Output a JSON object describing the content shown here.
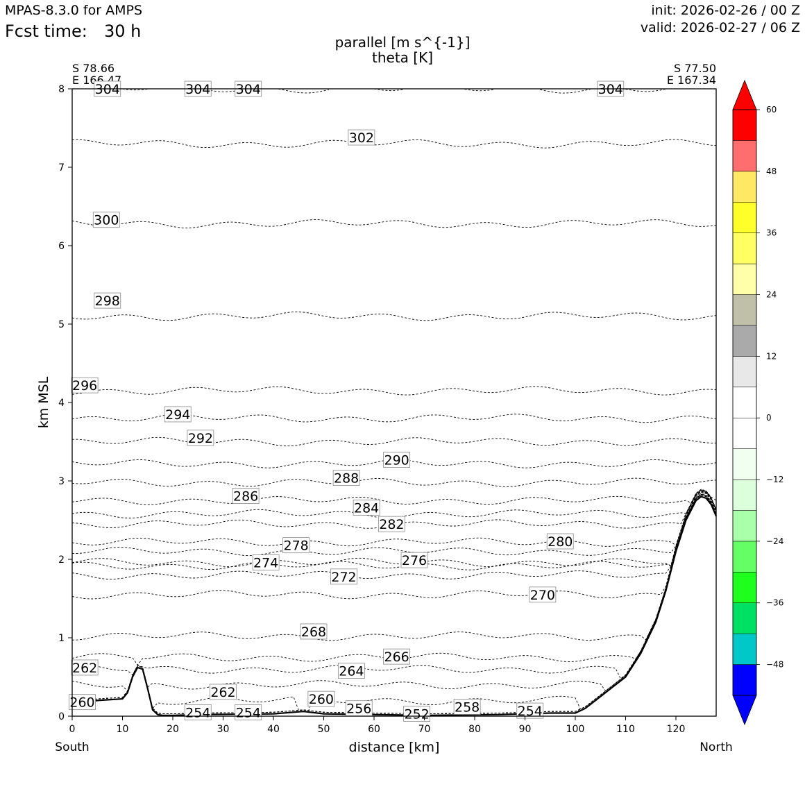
{
  "header": {
    "model": "MPAS-8.3.0 for AMPS",
    "fcst_label": "Fcst time:",
    "fcst_value": "30 h",
    "init": "init: 2026-02-26 / 00 Z",
    "valid": "valid: 2026-02-27 / 06 Z"
  },
  "title": {
    "line1": "parallel [m s^{-1}]",
    "line2": "theta [K]"
  },
  "endpoints": {
    "left_lat": "S 78.66",
    "left_lon": "E 166.47",
    "right_lat": "S 77.50",
    "right_lon": "E 167.34",
    "left_dir": "South",
    "right_dir": "North"
  },
  "chart_data": {
    "type": "contour-cross-section",
    "xlabel": "distance [km]",
    "ylabel": "km MSL",
    "xlim": [
      0,
      128
    ],
    "ylim": [
      0,
      8
    ],
    "xticks": [
      0,
      10,
      20,
      30,
      40,
      50,
      60,
      70,
      80,
      90,
      100,
      110,
      120
    ],
    "yticks": [
      0,
      1,
      2,
      3,
      4,
      5,
      6,
      7,
      8
    ],
    "terrain": {
      "x": [
        0,
        5,
        10,
        11,
        12,
        13,
        14,
        15,
        16,
        17,
        18,
        20,
        25,
        40,
        46,
        50,
        70,
        85,
        95,
        100,
        102,
        105,
        108,
        110,
        113,
        116,
        118,
        120,
        122,
        124,
        125,
        126,
        127,
        128
      ],
      "z": [
        0.15,
        0.2,
        0.22,
        0.3,
        0.5,
        0.62,
        0.6,
        0.35,
        0.08,
        0.02,
        0.01,
        0.01,
        0.02,
        0.03,
        0.06,
        0.03,
        0.01,
        0.02,
        0.04,
        0.04,
        0.1,
        0.25,
        0.4,
        0.5,
        0.8,
        1.2,
        1.6,
        2.1,
        2.5,
        2.75,
        2.8,
        2.78,
        2.7,
        2.55
      ]
    },
    "theta_contours": [
      {
        "label": "304",
        "z": 8.0
      },
      {
        "label": "302",
        "z": 7.3
      },
      {
        "label": "300",
        "z": 6.28
      },
      {
        "label": "298",
        "z": 5.1
      },
      {
        "label": "296",
        "z": 4.15
      },
      {
        "label": "294",
        "z": 3.8
      },
      {
        "label": "292",
        "z": 3.5
      },
      {
        "label": "290",
        "z": 3.22
      },
      {
        "label": "288",
        "z": 2.98
      },
      {
        "label": "286",
        "z": 2.75
      },
      {
        "label": "284",
        "z": 2.58
      },
      {
        "label": "282",
        "z": 2.45
      },
      {
        "label": "280",
        "z": 2.22
      },
      {
        "label": "278",
        "z": 2.1
      },
      {
        "label": "276",
        "z": 1.96
      },
      {
        "label": "274",
        "z": 1.92
      },
      {
        "label": "272",
        "z": 1.8
      },
      {
        "label": "270",
        "z": 1.55
      },
      {
        "label": "268",
        "z": 1.02
      },
      {
        "label": "266",
        "z": 0.75
      },
      {
        "label": "264",
        "z": 0.6
      },
      {
        "label": "262",
        "z": 0.4
      },
      {
        "label": "260",
        "z": 0.2
      },
      {
        "label": "258",
        "z": 0.12
      },
      {
        "label": "256",
        "z": 0.08
      },
      {
        "label": "254",
        "z": 0.05
      },
      {
        "label": "252",
        "z": 0.03
      }
    ],
    "contour_labels": [
      {
        "text": "304",
        "x": 7,
        "z": 8.0
      },
      {
        "text": "304",
        "x": 25,
        "z": 8.0
      },
      {
        "text": "304",
        "x": 35,
        "z": 8.0
      },
      {
        "text": "304",
        "x": 107,
        "z": 8.0
      },
      {
        "text": "302",
        "x": 57.5,
        "z": 7.38
      },
      {
        "text": "300",
        "x": 6.8,
        "z": 6.33
      },
      {
        "text": "298",
        "x": 7,
        "z": 5.3
      },
      {
        "text": "296",
        "x": 2.5,
        "z": 4.22
      },
      {
        "text": "294",
        "x": 21,
        "z": 3.85
      },
      {
        "text": "292",
        "x": 25.5,
        "z": 3.55
      },
      {
        "text": "290",
        "x": 64.5,
        "z": 3.27
      },
      {
        "text": "288",
        "x": 54.5,
        "z": 3.04
      },
      {
        "text": "286",
        "x": 34.5,
        "z": 2.81
      },
      {
        "text": "284",
        "x": 58.5,
        "z": 2.66
      },
      {
        "text": "282",
        "x": 63.5,
        "z": 2.45
      },
      {
        "text": "280",
        "x": 97,
        "z": 2.23
      },
      {
        "text": "278",
        "x": 44.5,
        "z": 2.18
      },
      {
        "text": "276",
        "x": 68,
        "z": 1.99
      },
      {
        "text": "274",
        "x": 38.5,
        "z": 1.96
      },
      {
        "text": "272",
        "x": 54,
        "z": 1.78
      },
      {
        "text": "270",
        "x": 93.5,
        "z": 1.55
      },
      {
        "text": "268",
        "x": 48,
        "z": 1.08
      },
      {
        "text": "266",
        "x": 64.5,
        "z": 0.76
      },
      {
        "text": "264",
        "x": 55.5,
        "z": 0.58
      },
      {
        "text": "262",
        "x": 2.5,
        "z": 0.62
      },
      {
        "text": "262",
        "x": 30,
        "z": 0.31
      },
      {
        "text": "260",
        "x": 2,
        "z": 0.18
      },
      {
        "text": "260",
        "x": 49.5,
        "z": 0.22
      },
      {
        "text": "258",
        "x": 78.5,
        "z": 0.12
      },
      {
        "text": "256",
        "x": 57,
        "z": 0.1
      },
      {
        "text": "254",
        "x": 25,
        "z": 0.05
      },
      {
        "text": "254",
        "x": 35,
        "z": 0.05
      },
      {
        "text": "254",
        "x": 91,
        "z": 0.07
      },
      {
        "text": "252",
        "x": 68.5,
        "z": 0.03
      }
    ],
    "colorbar": {
      "colors": [
        "#0000ff",
        "#00c8c8",
        "#00e164",
        "#1eff1e",
        "#64ff64",
        "#aaffaa",
        "#dcffdc",
        "#f0fff0",
        "#ffffff",
        "#ffffff",
        "#e8e8e8",
        "#aaaaaa",
        "#c0c0a8",
        "#ffffaa",
        "#ffff64",
        "#ffff2a",
        "#ffe864",
        "#ff6e6e",
        "#ff0000"
      ],
      "boundaries": [
        -54,
        -48,
        -42,
        -36,
        -30,
        -24,
        -18,
        -12,
        -6,
        0,
        6,
        12,
        18,
        24,
        30,
        36,
        42,
        48,
        54,
        60
      ],
      "over_color": "#ff0000",
      "under_color": "#0000ff",
      "ticks": [
        -48,
        -36,
        -24,
        -12,
        0,
        12,
        24,
        36,
        48,
        60
      ],
      "tick_labels": [
        "−48",
        "−36",
        "−24",
        "−12",
        "0",
        "12",
        "24",
        "36",
        "48",
        "60"
      ]
    }
  }
}
